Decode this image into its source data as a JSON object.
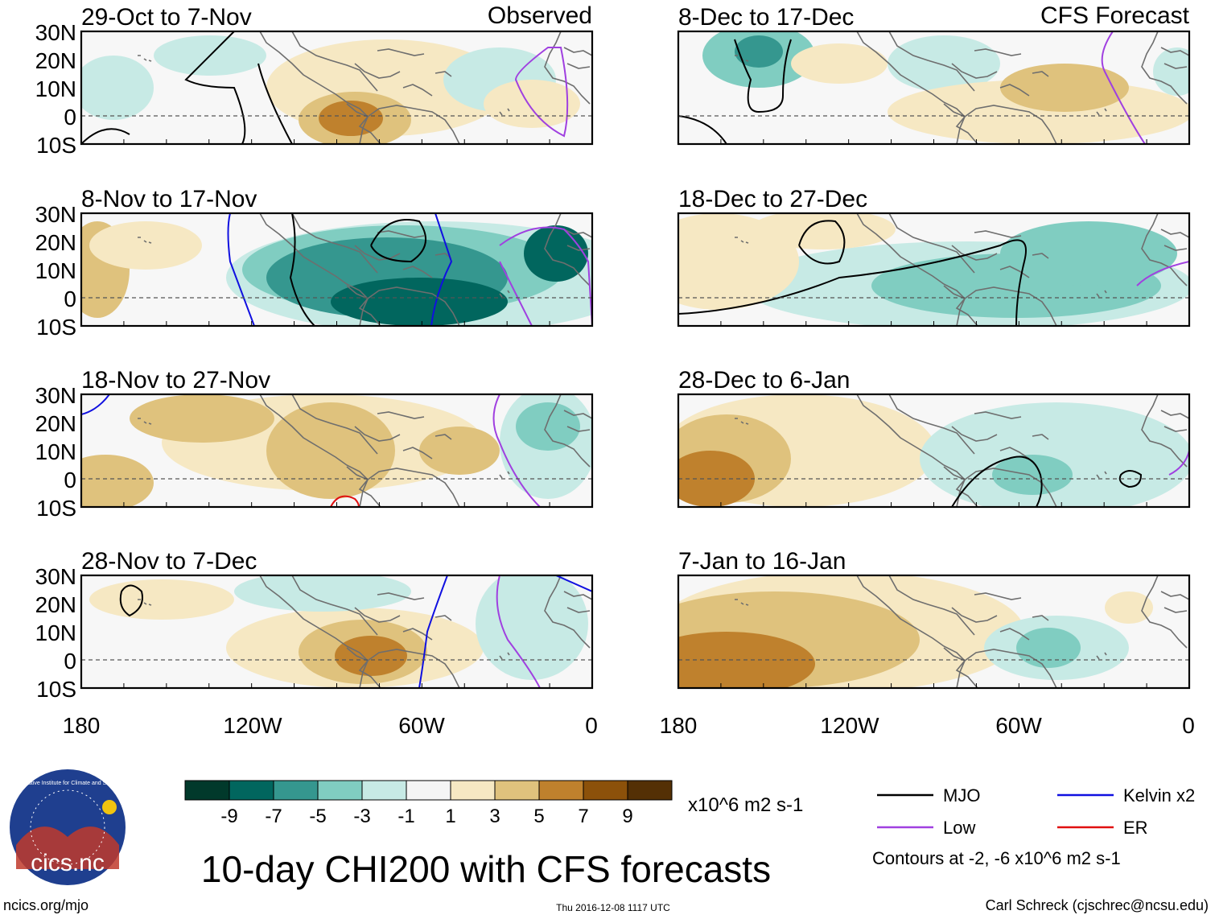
{
  "chart_data": {
    "type": "map-panels",
    "title": "10-day CHI200 with CFS forecasts",
    "variable": "CHI200 anomaly",
    "units": "x10^6 m2 s-1",
    "observed_label": "Observed",
    "forecast_label": "CFS Forecast",
    "lat_ticks": [
      "30N",
      "20N",
      "10N",
      "0",
      "10S"
    ],
    "lon_ticks": [
      "180",
      "120W",
      "60W",
      "0"
    ],
    "panels": [
      {
        "period": "29-Oct to 7-Nov",
        "source": "Observed",
        "contours": [
          "MJO",
          "Low"
        ]
      },
      {
        "period": "8-Nov to 17-Nov",
        "source": "Observed",
        "contours": [
          "MJO",
          "Kelvin x2",
          "Low"
        ]
      },
      {
        "period": "18-Nov to 27-Nov",
        "source": "Observed",
        "contours": [
          "Kelvin x2",
          "Low",
          "ER"
        ]
      },
      {
        "period": "28-Nov to 7-Dec",
        "source": "Observed",
        "contours": [
          "MJO",
          "Kelvin x2",
          "Low"
        ]
      },
      {
        "period": "8-Dec to 17-Dec",
        "source": "CFS Forecast",
        "contours": [
          "MJO",
          "Low"
        ]
      },
      {
        "period": "18-Dec to 27-Dec",
        "source": "CFS Forecast",
        "contours": [
          "MJO",
          "Low"
        ]
      },
      {
        "period": "28-Dec to 6-Jan",
        "source": "CFS Forecast",
        "contours": [
          "MJO",
          "Low"
        ]
      },
      {
        "period": "7-Jan to 16-Jan",
        "source": "CFS Forecast",
        "contours": []
      }
    ],
    "colorbar": {
      "colors": [
        "#01392b",
        "#01665e",
        "#35978f",
        "#80cdc1",
        "#c7eae5",
        "#f5f5f5",
        "#f6e8c3",
        "#dfc27d",
        "#bf812d",
        "#8c510a",
        "#543005"
      ],
      "labels": [
        "-9",
        "-7",
        "-5",
        "-3",
        "-1",
        "1",
        "3",
        "5",
        "7",
        "9"
      ]
    },
    "legend": [
      {
        "name": "MJO",
        "color": "#000000"
      },
      {
        "name": "Kelvin x2",
        "color": "#1010e0"
      },
      {
        "name": "Low",
        "color": "#a040e0"
      },
      {
        "name": "ER",
        "color": "#e01010"
      }
    ],
    "contour_note": "Contours at -2, -6 x10^6 m2 s-1"
  },
  "footer": {
    "site": "ncics.org/mjo",
    "timestamp": "Thu 2016-12-08 1117 UTC",
    "author": "Carl Schreck (cjschrec@ncsu.edu)",
    "logo_text": "cics.nc",
    "logo_ring": "Cooperative Institute for Climate and Satellites"
  }
}
